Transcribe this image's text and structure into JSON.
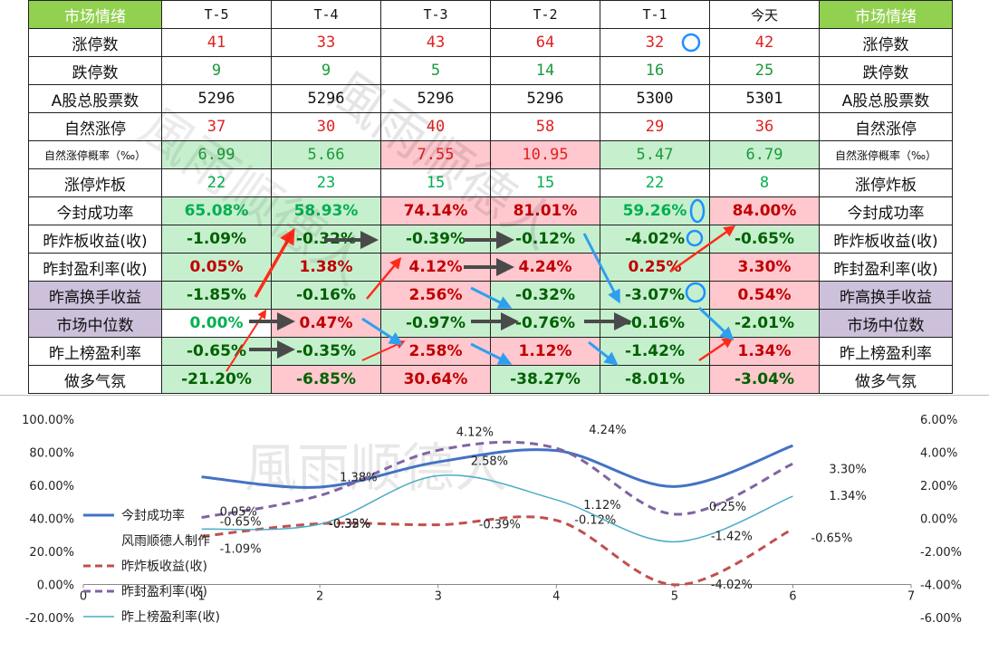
{
  "table": {
    "header": [
      "市场情绪",
      "T-5",
      "T-4",
      "T-3",
      "T-2",
      "T-1",
      "今天",
      "市场情绪"
    ],
    "rows": [
      {
        "label": "涨停数",
        "cells": [
          "41",
          "33",
          "43",
          "64",
          "32",
          "42"
        ],
        "style": "plain"
      },
      {
        "label": "跌停数",
        "cells": [
          "9",
          "9",
          "5",
          "14",
          "16",
          "25"
        ],
        "style": "plain"
      },
      {
        "label": "A股总股票数",
        "cells": [
          "5296",
          "5296",
          "5296",
          "5296",
          "5300",
          "5301"
        ],
        "style": "plain"
      },
      {
        "label": "自然涨停",
        "cells": [
          "37",
          "30",
          "40",
          "58",
          "29",
          "36"
        ],
        "style": "plain"
      },
      {
        "label": "自然涨停概率（‰）",
        "cells": [
          "6.99",
          "5.66",
          "7.55",
          "10.95",
          "5.47",
          "6.79"
        ],
        "style": "fill"
      },
      {
        "label": "涨停炸板",
        "cells": [
          "22",
          "23",
          "15",
          "15",
          "22",
          "8"
        ],
        "style": "plain"
      },
      {
        "label": "今封成功率",
        "cells": [
          "65.08%",
          "58.93%",
          "74.14%",
          "81.01%",
          "59.26%",
          "84.00%"
        ],
        "style": "fill"
      },
      {
        "label": "昨炸板收益(收)",
        "cells": [
          "-1.09%",
          "-0.32%",
          "-0.39%",
          "-0.12%",
          "-4.02%",
          "-0.65%"
        ],
        "style": "fill"
      },
      {
        "label": "昨封盈利率(收)",
        "cells": [
          "0.05%",
          "1.38%",
          "4.12%",
          "4.24%",
          "0.25%",
          "3.30%"
        ],
        "style": "fill"
      },
      {
        "label": "昨高换手收益",
        "cells": [
          "-1.85%",
          "-0.16%",
          "2.56%",
          "-0.32%",
          "-3.07%",
          "0.54%"
        ],
        "style": "fill"
      },
      {
        "label": "市场中位数",
        "cells": [
          "0.00%",
          "0.47%",
          "-0.97%",
          "-0.76%",
          "-0.16%",
          "-2.01%"
        ],
        "style": "fill"
      },
      {
        "label": "昨上榜盈利率",
        "cells": [
          "-0.65%",
          "-0.35%",
          "2.58%",
          "1.12%",
          "-1.42%",
          "1.34%"
        ],
        "style": "fill"
      },
      {
        "label": "做多气氛",
        "cells": [
          "-21.20%",
          "-6.85%",
          "30.64%",
          "-38.27%",
          "-8.01%",
          "-3.04%"
        ],
        "style": "fill"
      }
    ]
  },
  "colors": {
    "header_green": "#92d050",
    "purple": "#ccc0da",
    "good": "#c6efce",
    "bad": "#ffc7ce",
    "red_text": "#e02020",
    "green_text": "#1a9a3a",
    "arrow_red": "#ff2a1a",
    "arrow_blue": "#2e9fef",
    "arrow_dark": "#4a4a4a",
    "circle": "#1e90ff",
    "line_blue": "#4472c4",
    "line_red": "#c0504d",
    "line_purple": "#8064a2",
    "line_teal": "#4bacc6"
  },
  "watermark": "風雨顺德人",
  "chart_data": {
    "type": "line",
    "x_axis": {
      "min": 0,
      "max": 7,
      "ticks": [
        "0",
        "1",
        "2",
        "3",
        "4",
        "5",
        "6",
        "7"
      ]
    },
    "y_left": {
      "min": -20,
      "max": 100,
      "ticks": [
        "100.00%",
        "80.00%",
        "60.00%",
        "40.00%",
        "20.00%",
        "0.00%",
        "-20.00%"
      ]
    },
    "y_right": {
      "min": -6,
      "max": 6,
      "ticks": [
        "6.00%",
        "4.00%",
        "2.00%",
        "0.00%",
        "-2.00%",
        "-4.00%",
        "-6.00%"
      ]
    },
    "series": [
      {
        "name": "今封成功率",
        "axis": "left",
        "color": "#4472c4",
        "style": "solid",
        "width": 3,
        "x": [
          1,
          2,
          3,
          4,
          5,
          6
        ],
        "values": [
          65.08,
          58.93,
          74.14,
          81.01,
          59.26,
          84.0
        ],
        "labels": []
      },
      {
        "name": "昨炸板收益(收)",
        "axis": "right",
        "color": "#c0504d",
        "style": "dash",
        "width": 3,
        "x": [
          1,
          2,
          3,
          4,
          5,
          6
        ],
        "values": [
          -1.09,
          -0.32,
          -0.39,
          -0.12,
          -4.02,
          -0.65
        ],
        "labels": [
          "-1.09%",
          "-0.32%",
          "-0.39%",
          "-0.12%",
          "-4.02%",
          "-0.65%"
        ]
      },
      {
        "name": "昨封盈利率(收)",
        "axis": "right",
        "color": "#8064a2",
        "style": "dash",
        "width": 3,
        "x": [
          1,
          2,
          3,
          4,
          5,
          6
        ],
        "values": [
          0.05,
          1.38,
          4.12,
          4.24,
          0.25,
          3.3
        ],
        "labels": [
          "0.05%",
          "1.38%",
          "4.12%",
          "4.24%",
          "0.25%",
          "3.30%"
        ]
      },
      {
        "name": "昨上榜盈利率(收)",
        "axis": "right",
        "color": "#4bacc6",
        "style": "solid",
        "width": 1.5,
        "x": [
          1,
          2,
          3,
          4,
          5,
          6
        ],
        "values": [
          -0.65,
          -0.35,
          2.58,
          1.12,
          -1.42,
          1.34
        ],
        "labels": [
          "-0.65%",
          "-0.35%",
          "2.58%",
          "1.12%",
          "-1.42%",
          "1.34%"
        ]
      }
    ],
    "legend_placement": "left",
    "legend_note": "风雨顺德人制作",
    "grid": false
  }
}
